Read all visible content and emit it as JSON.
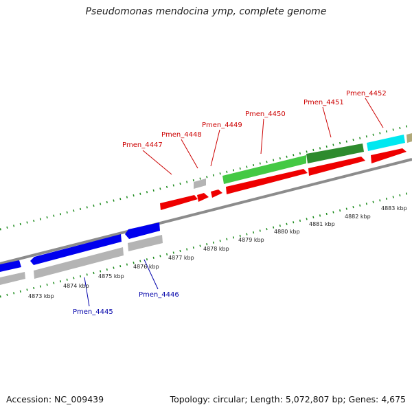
{
  "header": {
    "title": "Pseudomonas mendocina ymp, complete genome"
  },
  "footer": {
    "accession": "Accession: NC_009439",
    "summary": "Topology: circular; Length: 5,072,807 bp; Genes: 4,675"
  },
  "colors": {
    "green_light": "#44c944",
    "green_dark": "#2e8b2e",
    "red": "#ee0000",
    "blue": "#0000ee",
    "grey": "#b4b4b4",
    "cyan": "#00e8f0",
    "olive": "#b0a878",
    "backbone": "#888888",
    "tick": "#1a8a1a",
    "label_red": "#cc0000",
    "label_blue": "#0000aa"
  },
  "scale": {
    "unit": "kbp",
    "labels": [
      "4873 kbp",
      "4874 kbp",
      "4875 kbp",
      "4876 kbp",
      "4877 kbp",
      "4878 kbp",
      "4879 kbp",
      "4880 kbp",
      "4881 kbp",
      "4882 kbp",
      "4883 kbp"
    ]
  },
  "genes_forward": [
    {
      "name": "Pmen_4447",
      "color": "red"
    },
    {
      "name": "Pmen_4448",
      "color": "red"
    },
    {
      "name": "Pmen_4449",
      "color": "red"
    },
    {
      "name": "Pmen_4450",
      "color": "red"
    },
    {
      "name": "Pmen_4451",
      "color": "red"
    },
    {
      "name": "Pmen_4452",
      "color": "red"
    }
  ],
  "genes_reverse": [
    {
      "name": "Pmen_4445",
      "color": "blue"
    },
    {
      "name": "Pmen_4446",
      "color": "blue"
    }
  ]
}
